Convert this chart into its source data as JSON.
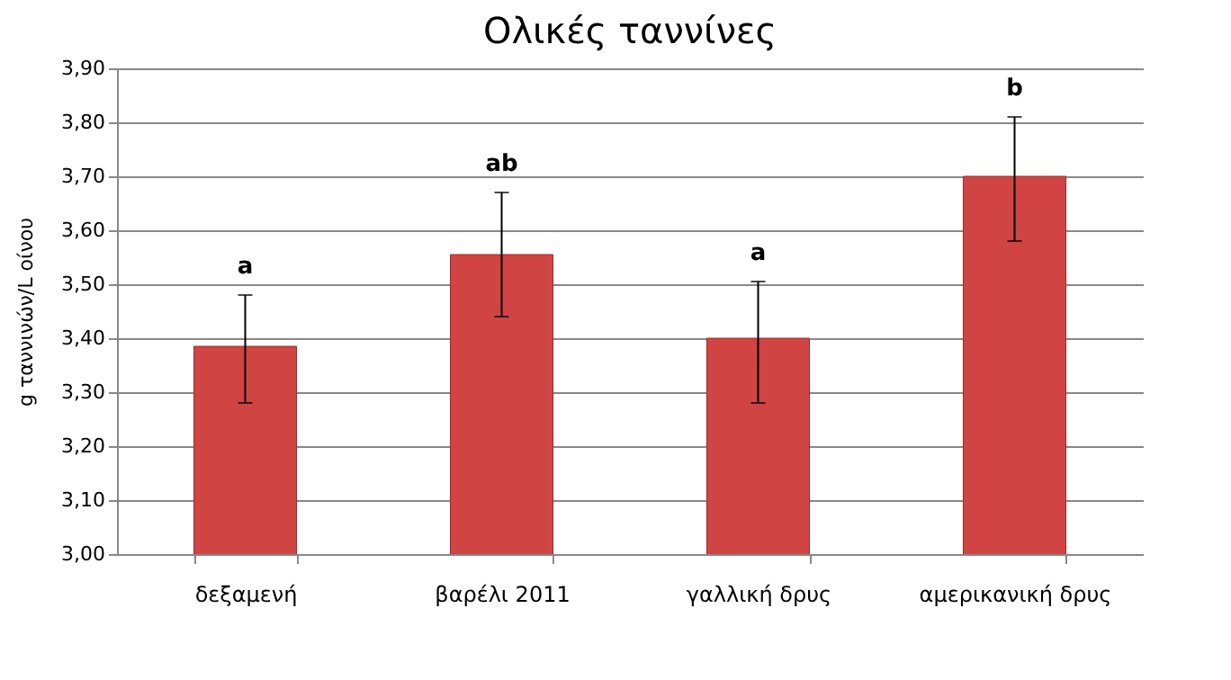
{
  "chart_data": {
    "type": "bar",
    "title": "Ολικές ταννίνες",
    "ylabel": "g ταννινών/L οίνου",
    "categories": [
      "δεξαμενή",
      "βαρέλι 2011",
      "γαλλική δρυς",
      "αμερικανική δρυς"
    ],
    "values": [
      3.385,
      3.555,
      3.4,
      3.7
    ],
    "color": "#d04444",
    "errors": [
      [
        3.28,
        3.48
      ],
      [
        3.44,
        3.67
      ],
      [
        3.28,
        3.505
      ],
      [
        3.58,
        3.81
      ]
    ],
    "annotations": [
      "a",
      "ab",
      "a",
      "b"
    ],
    "ylim": [
      3.0,
      3.9
    ],
    "yticks": [
      {
        "value": 3.0,
        "label": "3,00"
      },
      {
        "value": 3.1,
        "label": "3,10"
      },
      {
        "value": 3.2,
        "label": "3,20"
      },
      {
        "value": 3.3,
        "label": "3,30"
      },
      {
        "value": 3.4,
        "label": "3,40"
      },
      {
        "value": 3.5,
        "label": "3,50"
      },
      {
        "value": 3.6,
        "label": "3,60"
      },
      {
        "value": 3.7,
        "label": "3,70"
      },
      {
        "value": 3.8,
        "label": "3,80"
      },
      {
        "value": 3.9,
        "label": "3,90"
      }
    ],
    "grid": "y"
  }
}
